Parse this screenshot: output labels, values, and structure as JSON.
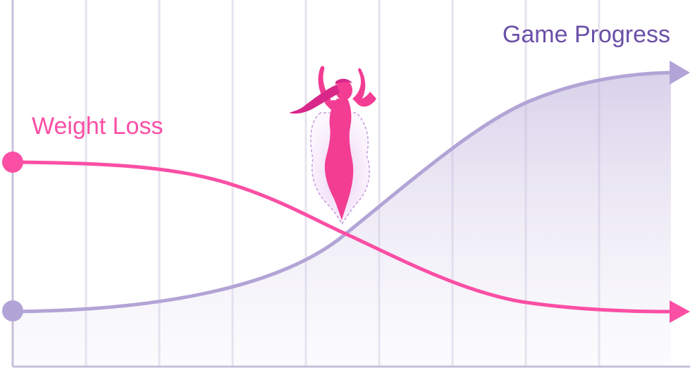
{
  "diagram": {
    "labels": {
      "weight_loss": "Weight Loss",
      "game_progress": "Game Progress"
    },
    "colors": {
      "weight_loss": "#fb4fa5",
      "game_progress": "#6a4fa8",
      "game_progress_line": "#b2a4d6",
      "grid": "#e6e3ee",
      "axis": "#c7c0da",
      "figure": "#f23d93",
      "figure_dark": "#d7288a"
    },
    "icons": {
      "figure": "woman-silhouette-icon",
      "weight_loss_start": "circle-marker-icon",
      "game_progress_start": "circle-marker-icon",
      "weight_loss_end": "arrowhead-icon",
      "game_progress_end": "arrowhead-icon"
    }
  }
}
